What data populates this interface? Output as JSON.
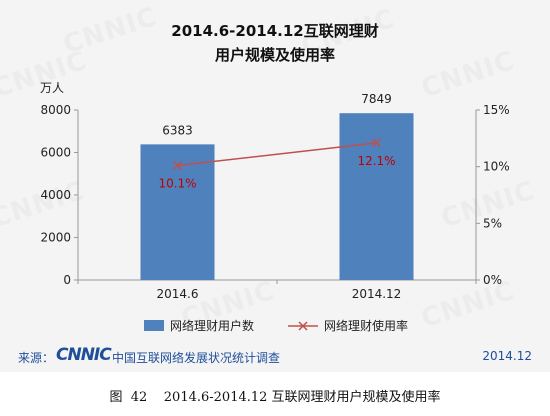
{
  "title_line1": "2014.6-2014.12互联网理财",
  "title_line2": "用户规模及使用率",
  "watermark": "CNNIC",
  "source_label": "来源：",
  "source_logo": "CNNIC",
  "source_org": "中国互联网络发展状况统计调查",
  "source_date": "2014.12",
  "caption": "图  42    2014.6-2014.12 互联网理财用户规模及使用率",
  "colors": {
    "bar": "#4f81bd",
    "line": "#c0504d",
    "rate_label": "#c00000"
  },
  "chart_data": {
    "type": "bar",
    "categories": [
      "2014.6",
      "2014.12"
    ],
    "series": [
      {
        "name": "网络理财用户数",
        "type": "bar",
        "axis": "left",
        "values": [
          6383,
          7849
        ],
        "labels": [
          "6383",
          "7849"
        ]
      },
      {
        "name": "网络理财使用率",
        "type": "line",
        "axis": "right",
        "marker": "x",
        "values": [
          10.1,
          12.1
        ],
        "labels": [
          "10.1%",
          "12.1%"
        ]
      }
    ],
    "y_left": {
      "label": "万人",
      "min": 0,
      "max": 8000,
      "ticks": [
        0,
        2000,
        4000,
        6000,
        8000
      ]
    },
    "y_right": {
      "min": 0,
      "max": 15,
      "ticks": [
        "0%",
        "5%",
        "10%",
        "15%"
      ]
    },
    "legend_position": "bottom",
    "grid": false
  }
}
